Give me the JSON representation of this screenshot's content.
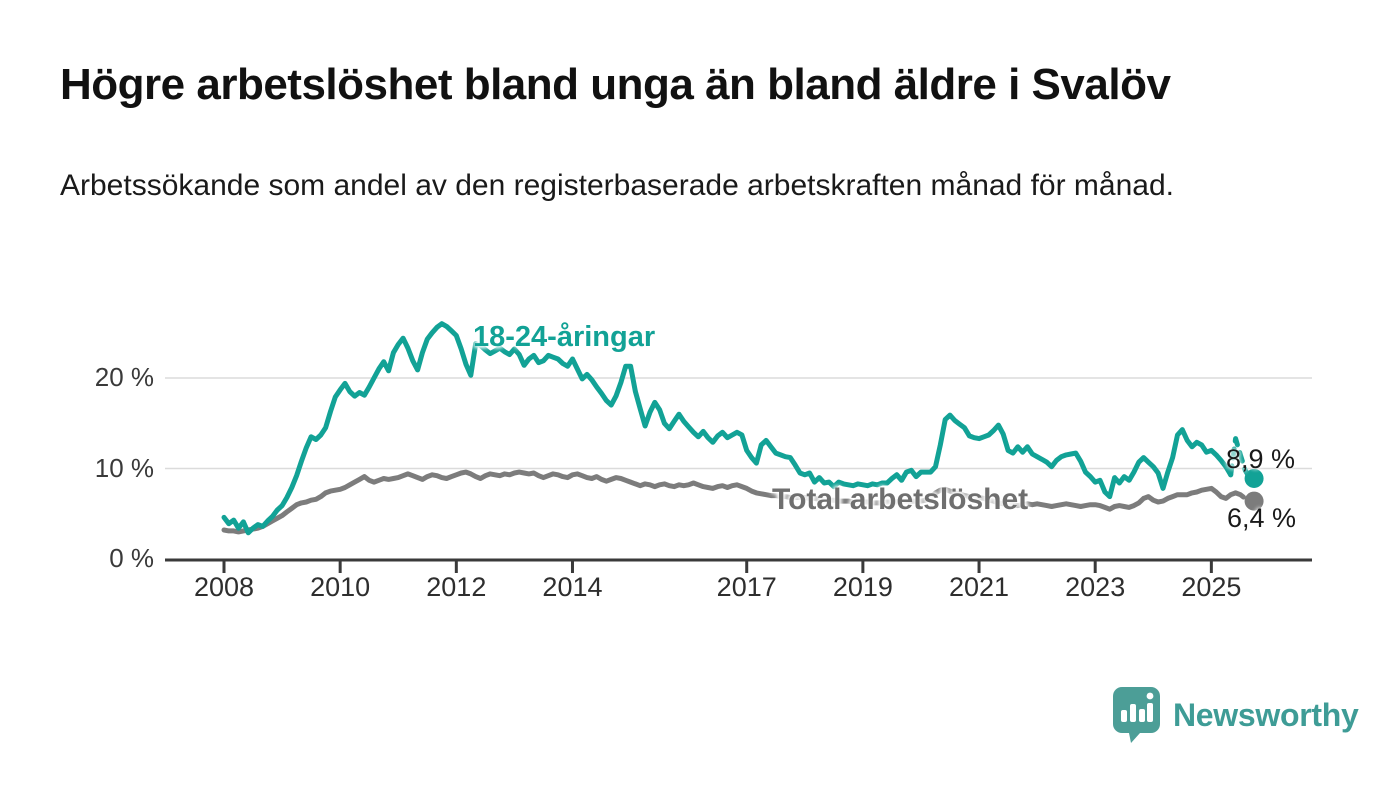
{
  "page": {
    "title": "Högre arbetslöshet bland unga än bland äldre i Svalöv",
    "subtitle": "Arbetssökande som andel av den registerbaserade arbetskraften månad för månad.",
    "branding": {
      "logo_text": "Newsworthy",
      "logo_icon": "speech-bubble-bar-chart"
    }
  },
  "colors": {
    "young_line": "#12A296",
    "total_line": "#7C7C7C",
    "total_label": "#6F6F6F",
    "grid": "#DBDBDB",
    "axis": "#3A3A3A",
    "text": "#1A1A1A",
    "logo": "#3E9C96"
  },
  "chart_data": {
    "type": "line",
    "title": "Högre arbetslöshet bland unga än bland äldre i Svalöv",
    "subtitle": "Arbetssökande som andel av den registerbaserade arbetskraften månad för månad.",
    "unit": "%",
    "frequency": "monthly",
    "start_year": 2008,
    "x_axis": {
      "tick_years": [
        2008,
        2010,
        2012,
        2014,
        2017,
        2019,
        2021,
        2023,
        2025
      ]
    },
    "y_axis": {
      "tick_values": [
        0,
        10,
        20
      ],
      "tick_labels": [
        "0 %",
        "10 %",
        "20 %"
      ],
      "range": [
        0,
        27
      ],
      "grid": true
    },
    "legend_position": "inline-labels",
    "series": [
      {
        "name": "18-24-åringar",
        "color": "#12A296",
        "end_label": "8,9 %",
        "end_value": 8.9,
        "dashed_tail_from": 208,
        "values": [
          4.6,
          3.9,
          4.3,
          3.4,
          4.1,
          2.9,
          3.4,
          3.8,
          3.6,
          4.2,
          4.7,
          5.4,
          5.9,
          6.8,
          7.9,
          9.2,
          10.8,
          12.3,
          13.5,
          13.2,
          13.7,
          14.5,
          16.3,
          17.9,
          18.7,
          19.4,
          18.5,
          18.0,
          18.4,
          18.1,
          19.0,
          20.0,
          21.0,
          21.8,
          20.8,
          22.8,
          23.7,
          24.4,
          23.3,
          21.9,
          20.9,
          22.8,
          24.3,
          25.0,
          25.6,
          26.0,
          25.7,
          25.2,
          24.7,
          23.2,
          21.5,
          20.3,
          23.8,
          23.6,
          23.1,
          22.7,
          23.0,
          23.3,
          22.9,
          22.6,
          23.2,
          22.6,
          21.4,
          22.1,
          22.5,
          21.7,
          21.9,
          22.5,
          22.3,
          22.1,
          21.6,
          21.3,
          22.1,
          21.0,
          19.9,
          20.4,
          19.8,
          19.0,
          18.3,
          17.5,
          17.0,
          18.0,
          19.5,
          21.3,
          21.3,
          18.5,
          16.6,
          14.7,
          16.2,
          17.3,
          16.5,
          15.0,
          14.4,
          15.2,
          16.0,
          15.2,
          14.6,
          14.0,
          13.5,
          14.1,
          13.4,
          12.9,
          13.6,
          14.0,
          13.4,
          13.7,
          14.0,
          13.7,
          12.0,
          11.2,
          10.6,
          12.6,
          13.1,
          12.4,
          11.7,
          11.5,
          11.3,
          11.2,
          10.4,
          9.5,
          9.3,
          9.5,
          8.5,
          9.0,
          8.4,
          8.5,
          8.0,
          8.5,
          8.3,
          8.2,
          8.1,
          8.3,
          8.2,
          8.1,
          8.3,
          8.2,
          8.4,
          8.4,
          8.9,
          9.3,
          8.7,
          9.6,
          9.8,
          9.1,
          9.6,
          9.6,
          9.6,
          10.2,
          12.6,
          15.4,
          15.9,
          15.3,
          14.9,
          14.5,
          13.6,
          13.4,
          13.3,
          13.5,
          13.7,
          14.2,
          14.8,
          13.8,
          12.0,
          11.7,
          12.4,
          11.8,
          12.4,
          11.6,
          11.3,
          11.0,
          10.7,
          10.2,
          10.9,
          11.3,
          11.5,
          11.6,
          11.7,
          10.8,
          9.6,
          9.1,
          8.5,
          8.7,
          7.4,
          6.9,
          9.0,
          8.4,
          9.1,
          8.7,
          9.6,
          10.7,
          11.2,
          10.7,
          10.2,
          9.5,
          7.8,
          9.6,
          11.2,
          13.7,
          14.3,
          13.1,
          12.4,
          12.9,
          12.6,
          11.8,
          12.0,
          11.5,
          10.9,
          10.2,
          9.3,
          13.3,
          11.5,
          9.8,
          8.9
        ]
      },
      {
        "name": "Total arbetslöshet",
        "color": "#7C7C7C",
        "end_label": "6,4 %",
        "end_value": 6.4,
        "dashed_tail_from": 209,
        "values": [
          3.2,
          3.1,
          3.1,
          3.0,
          3.1,
          3.2,
          3.3,
          3.4,
          3.6,
          3.9,
          4.2,
          4.5,
          4.8,
          5.2,
          5.6,
          6.0,
          6.2,
          6.3,
          6.5,
          6.6,
          6.9,
          7.3,
          7.5,
          7.6,
          7.7,
          7.9,
          8.2,
          8.5,
          8.8,
          9.1,
          8.7,
          8.5,
          8.7,
          8.9,
          8.8,
          8.9,
          9.0,
          9.2,
          9.4,
          9.2,
          9.0,
          8.8,
          9.1,
          9.3,
          9.2,
          9.0,
          8.9,
          9.1,
          9.3,
          9.5,
          9.6,
          9.4,
          9.1,
          8.9,
          9.2,
          9.4,
          9.3,
          9.2,
          9.4,
          9.3,
          9.5,
          9.6,
          9.5,
          9.4,
          9.5,
          9.2,
          9.0,
          9.2,
          9.4,
          9.3,
          9.1,
          9.0,
          9.3,
          9.4,
          9.2,
          9.0,
          8.9,
          9.1,
          8.8,
          8.6,
          8.8,
          9.0,
          8.9,
          8.7,
          8.5,
          8.3,
          8.1,
          8.3,
          8.2,
          8.0,
          8.2,
          8.3,
          8.1,
          8.0,
          8.2,
          8.1,
          8.2,
          8.4,
          8.2,
          8.0,
          7.9,
          7.8,
          8.0,
          8.1,
          7.9,
          8.1,
          8.2,
          8.0,
          7.8,
          7.5,
          7.3,
          7.2,
          7.1,
          7.0,
          7.0,
          6.9,
          6.9,
          6.8,
          6.8,
          6.8,
          6.8,
          6.7,
          6.7,
          6.6,
          6.6,
          6.5,
          6.5,
          6.4,
          6.4,
          6.4,
          6.3,
          6.3,
          6.3,
          6.3,
          6.2,
          6.2,
          6.2,
          6.3,
          6.3,
          6.3,
          6.4,
          6.4,
          6.4,
          6.4,
          6.4,
          6.5,
          6.8,
          7.3,
          7.6,
          7.7,
          7.5,
          7.3,
          7.2,
          7.0,
          6.9,
          6.8,
          6.8,
          6.7,
          6.5,
          6.4,
          6.2,
          6.1,
          6.2,
          6.0,
          5.9,
          6.0,
          6.1,
          6.0,
          6.1,
          6.0,
          5.9,
          5.8,
          5.9,
          6.0,
          6.1,
          6.0,
          5.9,
          5.8,
          5.9,
          6.0,
          6.0,
          5.9,
          5.7,
          5.5,
          5.8,
          5.9,
          5.8,
          5.7,
          5.9,
          6.2,
          6.7,
          6.9,
          6.5,
          6.3,
          6.4,
          6.7,
          6.9,
          7.1,
          7.1,
          7.1,
          7.3,
          7.4,
          7.6,
          7.7,
          7.8,
          7.4,
          6.9,
          6.7,
          7.1,
          7.3,
          7.1,
          6.7,
          6.4
        ]
      }
    ]
  }
}
